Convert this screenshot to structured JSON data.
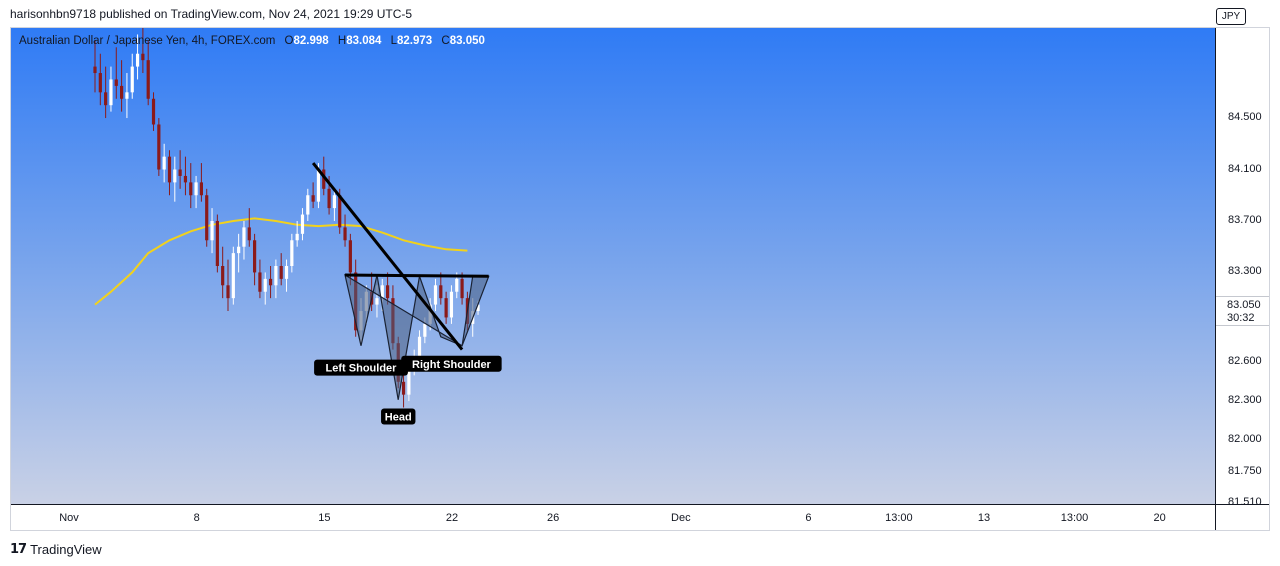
{
  "header": {
    "published_line": "harisonhbn9718 published on TradingView.com, Nov 24, 2021 19:29 UTC-5"
  },
  "legend": {
    "symbol": "Australian Dollar / Japanese Yen, 4h, FOREX.com",
    "open_label": "O",
    "open": "82.998",
    "high_label": "H",
    "high": "83.084",
    "low_label": "L",
    "low": "82.973",
    "close_label": "C",
    "close": "83.050"
  },
  "currency_badge": "JPY",
  "footer": {
    "brand": "TradingView"
  },
  "colors": {
    "up_candle": "#ffffff",
    "down_candle": "#8b1a1a",
    "moving_average": "#f2d21b",
    "pattern_fill": "#4a5f82",
    "trend_line": "#000000",
    "label_bg": "#000000",
    "label_text": "#ffffff"
  },
  "chart_data": {
    "type": "candlestick",
    "interval": "4h",
    "ylim": [
      81.5,
      85.2
    ],
    "price_ticks": [
      "84.500",
      "84.100",
      "83.700",
      "83.300",
      "82.600",
      "82.300",
      "82.000",
      "81.750",
      "81.510"
    ],
    "price_tick_values": [
      84.5,
      84.1,
      83.7,
      83.3,
      82.6,
      82.3,
      82.0,
      81.75,
      81.51
    ],
    "last_price": {
      "value": "83.050",
      "countdown": "30:32",
      "value_num": 83.05
    },
    "time_ticks": [
      "Nov",
      "8",
      "15",
      "22",
      "26",
      "Dec",
      "6",
      "13:00",
      "13",
      "13:00",
      "20"
    ],
    "time_tick_bars": [
      0,
      24,
      48,
      72,
      91,
      115,
      139,
      156,
      172,
      189,
      205
    ],
    "candles": [
      [
        84.9,
        85.1,
        84.7,
        84.85
      ],
      [
        84.85,
        85.0,
        84.6,
        84.7
      ],
      [
        84.7,
        84.9,
        84.5,
        84.6
      ],
      [
        84.6,
        84.9,
        84.55,
        84.8
      ],
      [
        84.8,
        85.05,
        84.65,
        84.75
      ],
      [
        84.75,
        84.95,
        84.55,
        84.65
      ],
      [
        84.65,
        84.85,
        84.5,
        84.7
      ],
      [
        84.7,
        85.0,
        84.65,
        84.9
      ],
      [
        84.9,
        85.15,
        84.8,
        85.0
      ],
      [
        85.0,
        85.2,
        84.85,
        84.95
      ],
      [
        84.95,
        85.1,
        84.6,
        84.65
      ],
      [
        84.65,
        84.7,
        84.4,
        84.45
      ],
      [
        84.45,
        84.5,
        84.05,
        84.1
      ],
      [
        84.1,
        84.3,
        84.0,
        84.2
      ],
      [
        84.2,
        84.25,
        83.9,
        84.0
      ],
      [
        84.0,
        84.2,
        83.85,
        84.1
      ],
      [
        84.1,
        84.25,
        83.95,
        84.05
      ],
      [
        84.05,
        84.2,
        83.9,
        84.0
      ],
      [
        84.0,
        84.15,
        83.8,
        83.9
      ],
      [
        83.9,
        84.05,
        83.8,
        84.0
      ],
      [
        84.0,
        84.15,
        83.85,
        83.9
      ],
      [
        83.9,
        83.95,
        83.5,
        83.55
      ],
      [
        83.55,
        83.8,
        83.45,
        83.7
      ],
      [
        83.7,
        83.75,
        83.3,
        83.35
      ],
      [
        83.35,
        83.5,
        83.1,
        83.2
      ],
      [
        83.2,
        83.4,
        83.0,
        83.1
      ],
      [
        83.1,
        83.5,
        83.05,
        83.45
      ],
      [
        83.45,
        83.6,
        83.3,
        83.5
      ],
      [
        83.5,
        83.7,
        83.4,
        83.65
      ],
      [
        83.65,
        83.8,
        83.5,
        83.55
      ],
      [
        83.55,
        83.6,
        83.2,
        83.3
      ],
      [
        83.3,
        83.4,
        83.1,
        83.15
      ],
      [
        83.15,
        83.3,
        83.05,
        83.25
      ],
      [
        83.25,
        83.35,
        83.1,
        83.2
      ],
      [
        83.2,
        83.4,
        83.1,
        83.35
      ],
      [
        83.35,
        83.45,
        83.2,
        83.25
      ],
      [
        83.25,
        83.4,
        83.15,
        83.35
      ],
      [
        83.35,
        83.6,
        83.3,
        83.55
      ],
      [
        83.55,
        83.7,
        83.5,
        83.6
      ],
      [
        83.6,
        83.8,
        83.55,
        83.75
      ],
      [
        83.75,
        83.95,
        83.7,
        83.9
      ],
      [
        83.9,
        84.0,
        83.8,
        83.85
      ],
      [
        83.85,
        84.15,
        83.8,
        84.1
      ],
      [
        84.1,
        84.2,
        83.9,
        83.95
      ],
      [
        83.95,
        84.05,
        83.75,
        83.8
      ],
      [
        83.8,
        83.95,
        83.7,
        83.9
      ],
      [
        83.9,
        83.95,
        83.6,
        83.65
      ],
      [
        83.65,
        83.75,
        83.5,
        83.55
      ],
      [
        83.55,
        83.6,
        83.2,
        83.3
      ],
      [
        83.3,
        83.4,
        82.8,
        82.85
      ],
      [
        82.85,
        83.1,
        82.75,
        83.0
      ],
      [
        83.0,
        83.2,
        82.9,
        83.15
      ],
      [
        83.15,
        83.3,
        83.0,
        83.05
      ],
      [
        83.05,
        83.2,
        82.95,
        83.1
      ],
      [
        83.1,
        83.25,
        83.0,
        83.2
      ],
      [
        83.2,
        83.3,
        83.05,
        83.1
      ],
      [
        83.1,
        83.2,
        82.7,
        82.75
      ],
      [
        82.75,
        82.8,
        82.4,
        82.45
      ],
      [
        82.45,
        82.5,
        82.25,
        82.35
      ],
      [
        82.35,
        82.6,
        82.3,
        82.55
      ],
      [
        82.55,
        82.7,
        82.5,
        82.65
      ],
      [
        82.65,
        82.85,
        82.6,
        82.8
      ],
      [
        82.8,
        82.95,
        82.75,
        82.9
      ],
      [
        82.9,
        83.1,
        82.85,
        83.05
      ],
      [
        83.05,
        83.25,
        83.0,
        83.2
      ],
      [
        83.2,
        83.3,
        83.05,
        83.1
      ],
      [
        83.1,
        83.15,
        82.9,
        82.95
      ],
      [
        82.95,
        83.2,
        82.9,
        83.15
      ],
      [
        83.15,
        83.3,
        83.1,
        83.25
      ],
      [
        83.25,
        83.3,
        83.05,
        83.1
      ],
      [
        83.1,
        83.15,
        82.85,
        82.9
      ],
      [
        82.9,
        83.1,
        82.8,
        83.0
      ],
      [
        83.0,
        83.08,
        82.97,
        83.05
      ]
    ],
    "moving_average": [
      [
        0,
        83.05
      ],
      [
        3,
        83.15
      ],
      [
        7,
        83.3
      ],
      [
        10,
        83.45
      ],
      [
        14,
        83.55
      ],
      [
        18,
        83.62
      ],
      [
        22,
        83.67
      ],
      [
        26,
        83.7
      ],
      [
        30,
        83.72
      ],
      [
        34,
        83.7
      ],
      [
        38,
        83.67
      ],
      [
        42,
        83.66
      ],
      [
        46,
        83.67
      ],
      [
        50,
        83.66
      ],
      [
        54,
        83.61
      ],
      [
        58,
        83.55
      ],
      [
        62,
        83.51
      ],
      [
        66,
        83.48
      ],
      [
        70,
        83.47
      ]
    ],
    "annotations": {
      "trendline_descending": [
        [
          41,
          84.15
        ],
        [
          69,
          82.7
        ]
      ],
      "neckline": [
        [
          47,
          83.28
        ],
        [
          74,
          83.27
        ]
      ],
      "pattern": [
        [
          47,
          83.28
        ],
        [
          50,
          82.73
        ],
        [
          53,
          83.28
        ],
        [
          57,
          82.31
        ],
        [
          61,
          83.27
        ],
        [
          65,
          82.8
        ],
        [
          69,
          82.73
        ],
        [
          71,
          83.27
        ],
        [
          74,
          83.27
        ],
        [
          69,
          82.73
        ]
      ],
      "labels": [
        {
          "text": "Left Shoulder",
          "bar": 50,
          "price": 82.56
        },
        {
          "text": "Head",
          "bar": 57,
          "price": 82.18
        },
        {
          "text": "Right Shoulder",
          "bar": 67,
          "price": 82.59
        }
      ]
    }
  }
}
